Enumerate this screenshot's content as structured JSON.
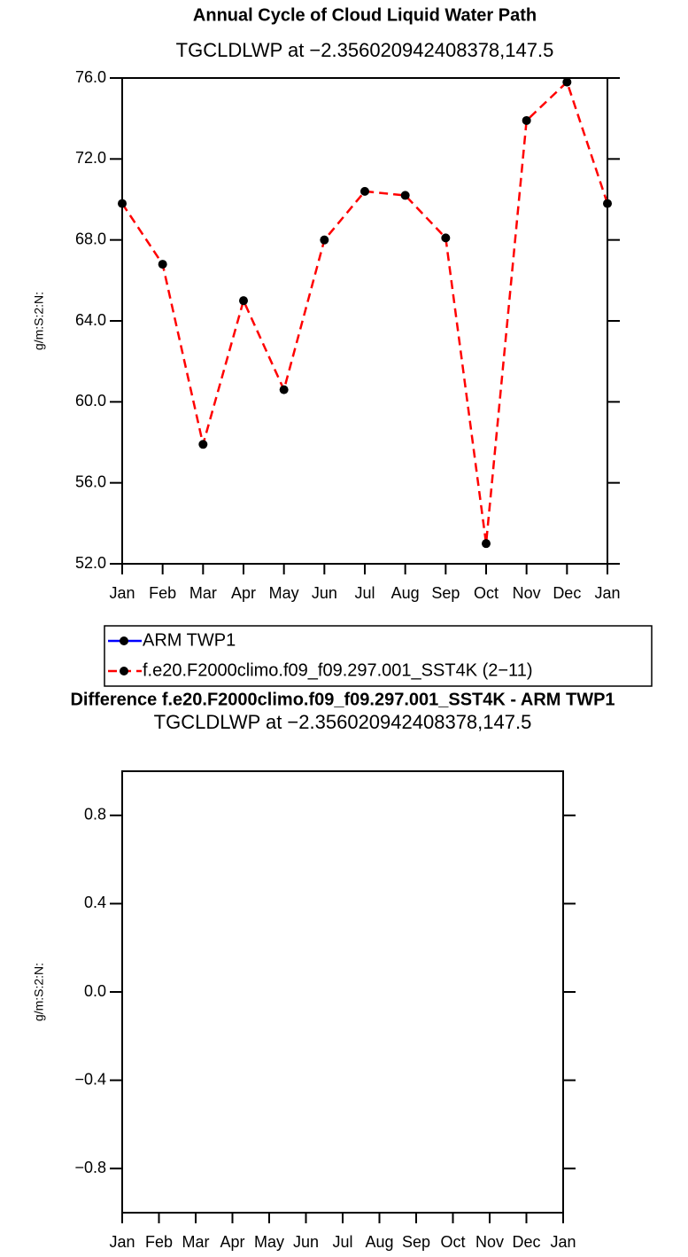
{
  "chart_data": [
    {
      "type": "line",
      "title": "Annual Cycle of Cloud Liquid Water Path",
      "subtitle": "TGCLDLWP at −2.356020942408378,147.5",
      "y_label": "g/m:S:2:N:",
      "categories": [
        "Jan",
        "Feb",
        "Mar",
        "Apr",
        "May",
        "Jun",
        "Jul",
        "Aug",
        "Sep",
        "Oct",
        "Nov",
        "Dec",
        "Jan"
      ],
      "series": [
        {
          "name": "ARM TWP1",
          "color": "#0000ff",
          "line_style": "solid",
          "marker": "circle",
          "values": [
            null,
            null,
            null,
            null,
            null,
            null,
            null,
            null,
            null,
            null,
            null,
            null,
            null
          ]
        },
        {
          "name": "f.e20.F2000climo.f09_f09.297.001_SST4K (2−11)",
          "color": "#ff0000",
          "line_style": "dashed",
          "marker": "circle",
          "values": [
            69.8,
            66.8,
            57.9,
            65.0,
            60.6,
            68.0,
            70.4,
            70.2,
            68.1,
            53.0,
            73.9,
            75.8,
            69.8
          ]
        }
      ],
      "ylim": [
        52,
        76
      ],
      "yticks": [
        {
          "value": 52,
          "label": "52.0"
        },
        {
          "value": 56,
          "label": "56.0"
        },
        {
          "value": 60,
          "label": "60.0"
        },
        {
          "value": 64,
          "label": "64.0"
        },
        {
          "value": 68,
          "label": "68.0"
        },
        {
          "value": 72,
          "label": "72.0"
        },
        {
          "value": 76,
          "label": "76.0"
        }
      ],
      "legend": "below"
    },
    {
      "type": "line",
      "title": "Difference f.e20.F2000climo.f09_f09.297.001_SST4K - ARM TWP1",
      "subtitle": "TGCLDLWP at −2.356020942408378,147.5",
      "y_label": "g/m:S:2:N:",
      "categories": [
        "Jan",
        "Feb",
        "Mar",
        "Apr",
        "May",
        "Jun",
        "Jul",
        "Aug",
        "Sep",
        "Oct",
        "Nov",
        "Dec",
        "Jan"
      ],
      "ylim": [
        -1,
        1
      ],
      "yticks": [
        {
          "value": -0.8,
          "label": "−0.8"
        },
        {
          "value": -0.4,
          "label": "−0.4"
        },
        {
          "value": 0,
          "label": "0.0"
        },
        0.4,
        0.8
      ]
    }
  ]
}
